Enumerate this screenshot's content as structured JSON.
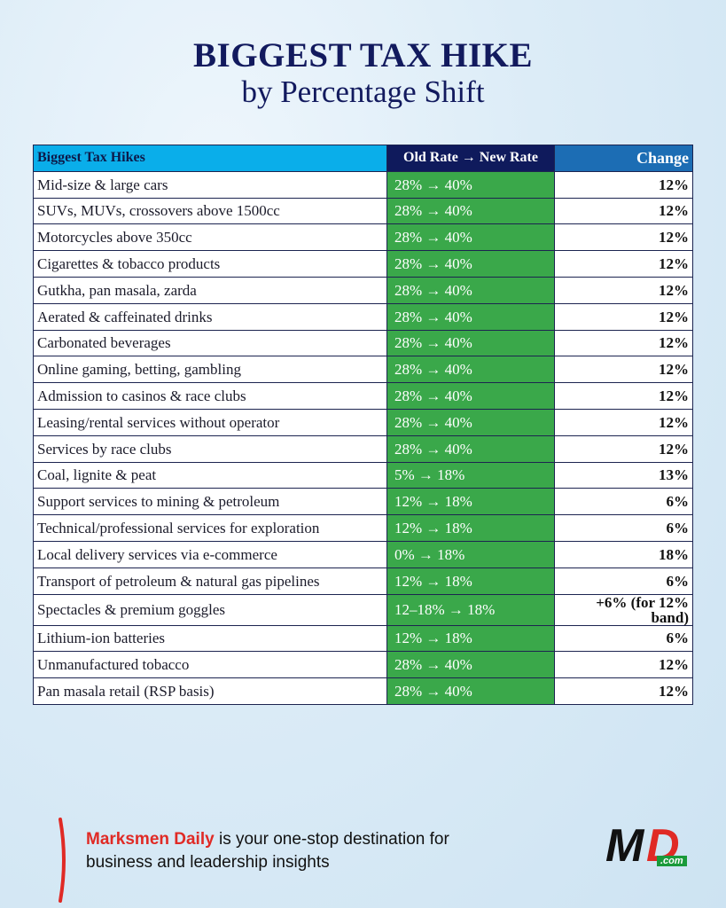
{
  "header": {
    "title": "BIGGEST TAX HIKE",
    "subtitle": "by Percentage Shift"
  },
  "table": {
    "columns": [
      "Biggest Tax Hikes",
      "Old Rate → New Rate",
      "Change"
    ],
    "rows": [
      [
        "Mid-size & large cars",
        "28% → 40%",
        "12%"
      ],
      [
        "SUVs, MUVs, crossovers above 1500cc",
        "28% → 40%",
        "12%"
      ],
      [
        "Motorcycles above 350cc",
        "28% → 40%",
        "12%"
      ],
      [
        "Cigarettes & tobacco products",
        "28% → 40%",
        "12%"
      ],
      [
        "Gutkha, pan masala, zarda",
        "28% → 40%",
        "12%"
      ],
      [
        "Aerated & caffeinated drinks",
        "28% → 40%",
        "12%"
      ],
      [
        "Carbonated beverages",
        "28% → 40%",
        "12%"
      ],
      [
        "Online gaming, betting, gambling",
        "28% → 40%",
        "12%"
      ],
      [
        "Admission to casinos & race clubs",
        "28% → 40%",
        "12%"
      ],
      [
        "Leasing/rental services without operator",
        "28% → 40%",
        "12%"
      ],
      [
        "Services by race clubs",
        "28% → 40%",
        "12%"
      ],
      [
        "Coal, lignite & peat",
        "5% → 18%",
        "13%"
      ],
      [
        "Support services to mining & petroleum",
        "12% → 18%",
        "6%"
      ],
      [
        "Technical/professional services for exploration",
        "12% → 18%",
        "6%"
      ],
      [
        "Local delivery services via e-commerce",
        "0% → 18%",
        "18%"
      ],
      [
        "Transport of petroleum & natural gas pipelines",
        "12% → 18%",
        "6%"
      ],
      [
        "Spectacles & premium goggles",
        "12–18% → 18%",
        "+6% (for 12% band)"
      ],
      [
        "Lithium-ion batteries",
        "12% → 18%",
        "6%"
      ],
      [
        "Unmanufactured tobacco",
        "28% → 40%",
        "12%"
      ],
      [
        "Pan masala retail (RSP basis)",
        "28% → 40%",
        "12%"
      ]
    ]
  },
  "footer": {
    "brand": "Marksmen Daily",
    "text1": " is your one-stop destination for",
    "text2": "business and leadership insights"
  },
  "logo": {
    "m": "M",
    "d": "D",
    "com": ".com"
  }
}
